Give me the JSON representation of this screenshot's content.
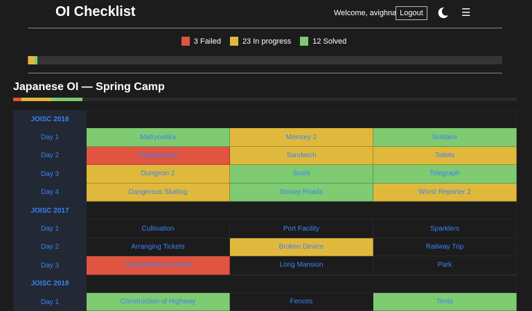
{
  "header": {
    "title": "OI Checklist",
    "welcome": "Welcome, avighna",
    "logout_label": "Logout",
    "theme_icon": "moon-icon",
    "menu_icon": "hamburger-menu-icon"
  },
  "colors": {
    "failed": "#e05440",
    "progress": "#e0b93c",
    "solved": "#7ecb72"
  },
  "legend": [
    {
      "label": "3 Failed",
      "status": "failed"
    },
    {
      "label": "23 In progress",
      "status": "progress"
    },
    {
      "label": "12 Solved",
      "status": "solved"
    }
  ],
  "overall_progress": {
    "failed_pct": 0.2,
    "progress_pct": 1.2,
    "solved_pct": 0.6
  },
  "section": {
    "title": "Japanese OI — Spring Camp",
    "progress": {
      "failed_pct": 1.7,
      "progress_pct": 5.9,
      "solved_pct": 6.1
    }
  },
  "years": [
    {
      "name": "JOISC 2016",
      "days": [
        {
          "label": "Day 1",
          "problems": [
            {
              "name": "Matryoshka",
              "status": "solved"
            },
            {
              "name": "Memory 2",
              "status": "progress"
            },
            {
              "name": "Solitaire",
              "status": "solved"
            }
          ]
        },
        {
          "label": "Day 2",
          "problems": [
            {
              "name": "Employment",
              "status": "failed"
            },
            {
              "name": "Sandwich",
              "status": "progress"
            },
            {
              "name": "Toilets",
              "status": "progress"
            }
          ]
        },
        {
          "label": "Day 3",
          "problems": [
            {
              "name": "Dungeon 2",
              "status": "progress"
            },
            {
              "name": "Sushi",
              "status": "solved"
            },
            {
              "name": "Telegraph",
              "status": "solved"
            }
          ]
        },
        {
          "label": "Day 4",
          "problems": [
            {
              "name": "Dangerous Skating",
              "status": "progress"
            },
            {
              "name": "Snowy Roads",
              "status": "solved"
            },
            {
              "name": "Worst Reporter 2",
              "status": "progress"
            }
          ]
        }
      ]
    },
    {
      "name": "JOISC 2017",
      "days": [
        {
          "label": "Day 1",
          "problems": [
            {
              "name": "Cultivation",
              "status": "none"
            },
            {
              "name": "Port Facility",
              "status": "none"
            },
            {
              "name": "Sparklers",
              "status": "none"
            }
          ]
        },
        {
          "label": "Day 2",
          "problems": [
            {
              "name": "Arranging Tickets",
              "status": "none"
            },
            {
              "name": "Broken Device",
              "status": "progress"
            },
            {
              "name": "Railway Trip",
              "status": "none"
            }
          ]
        },
        {
          "label": "Day 3",
          "problems": [
            {
              "name": "Long Distance Coach",
              "status": "failed"
            },
            {
              "name": "Long Mansion",
              "status": "none"
            },
            {
              "name": "Park",
              "status": "none"
            }
          ]
        }
      ]
    },
    {
      "name": "JOISC 2018",
      "days": [
        {
          "label": "Day 1",
          "problems": [
            {
              "name": "Construction of Highway",
              "status": "solved"
            },
            {
              "name": "Fences",
              "status": "none"
            },
            {
              "name": "Tents",
              "status": "solved"
            }
          ]
        }
      ]
    }
  ]
}
